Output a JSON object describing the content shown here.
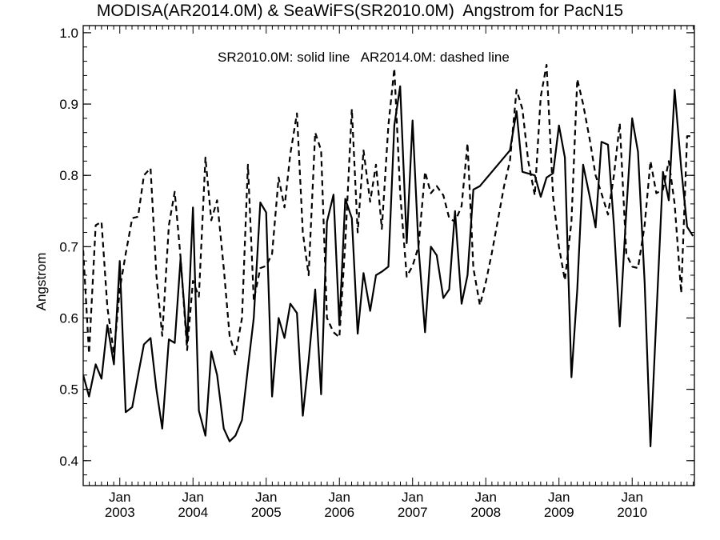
{
  "chart_data": {
    "type": "line",
    "title": "MODISA(AR2014.0M) & SeaWiFS(SR2010.0M)  Angstrom for PacN15",
    "legend_text": "SR2010.0M: solid line   AR2014.0M: dashed line",
    "ylabel": "Angstrom",
    "xlabel": "",
    "ylim": [
      0.365,
      1.01
    ],
    "xlim": [
      2002.5,
      2010.85
    ],
    "grid": false,
    "y_ticks": [
      "0.4",
      "0.5",
      "0.6",
      "0.7",
      "0.8",
      "0.9",
      "1.0"
    ],
    "x_ticks": [
      {
        "month": "Jan",
        "year": "2003",
        "x": 2003.0
      },
      {
        "month": "Jan",
        "year": "2004",
        "x": 2004.0
      },
      {
        "month": "Jan",
        "year": "2005",
        "x": 2005.0
      },
      {
        "month": "Jan",
        "year": "2006",
        "x": 2006.0
      },
      {
        "month": "Jan",
        "year": "2007",
        "x": 2007.0
      },
      {
        "month": "Jan",
        "year": "2008",
        "x": 2008.0
      },
      {
        "month": "Jan",
        "year": "2009",
        "x": 2009.0
      },
      {
        "month": "Jan",
        "year": "2010",
        "x": 2010.0
      }
    ],
    "series": [
      {
        "name": "SR2010.0M",
        "style": "solid",
        "color": "#000000",
        "points": [
          [
            2002.5,
            0.52
          ],
          [
            2002.58,
            0.49
          ],
          [
            2002.67,
            0.535
          ],
          [
            2002.75,
            0.515
          ],
          [
            2002.83,
            0.59
          ],
          [
            2002.92,
            0.535
          ],
          [
            2003.0,
            0.68
          ],
          [
            2003.08,
            0.468
          ],
          [
            2003.17,
            0.475
          ],
          [
            2003.25,
            0.52
          ],
          [
            2003.33,
            0.563
          ],
          [
            2003.42,
            0.572
          ],
          [
            2003.5,
            0.5
          ],
          [
            2003.58,
            0.445
          ],
          [
            2003.67,
            0.57
          ],
          [
            2003.75,
            0.565
          ],
          [
            2003.83,
            0.683
          ],
          [
            2003.92,
            0.565
          ],
          [
            2004.0,
            0.755
          ],
          [
            2004.08,
            0.47
          ],
          [
            2004.17,
            0.435
          ],
          [
            2004.25,
            0.553
          ],
          [
            2004.33,
            0.52
          ],
          [
            2004.42,
            0.445
          ],
          [
            2004.5,
            0.427
          ],
          [
            2004.58,
            0.435
          ],
          [
            2004.67,
            0.457
          ],
          [
            2004.75,
            0.53
          ],
          [
            2004.83,
            0.6
          ],
          [
            2004.92,
            0.762
          ],
          [
            2005.0,
            0.748
          ],
          [
            2005.08,
            0.49
          ],
          [
            2005.17,
            0.6
          ],
          [
            2005.25,
            0.572
          ],
          [
            2005.33,
            0.62
          ],
          [
            2005.42,
            0.607
          ],
          [
            2005.5,
            0.463
          ],
          [
            2005.58,
            0.54
          ],
          [
            2005.67,
            0.64
          ],
          [
            2005.75,
            0.493
          ],
          [
            2005.83,
            0.735
          ],
          [
            2005.92,
            0.773
          ],
          [
            2006.0,
            0.59
          ],
          [
            2006.08,
            0.767
          ],
          [
            2006.17,
            0.74
          ],
          [
            2006.25,
            0.578
          ],
          [
            2006.33,
            0.663
          ],
          [
            2006.42,
            0.61
          ],
          [
            2006.5,
            0.66
          ],
          [
            2006.58,
            0.665
          ],
          [
            2006.67,
            0.672
          ],
          [
            2006.75,
            0.87
          ],
          [
            2006.83,
            0.925
          ],
          [
            2006.92,
            0.705
          ],
          [
            2007.0,
            0.877
          ],
          [
            2007.08,
            0.7
          ],
          [
            2007.17,
            0.58
          ],
          [
            2007.25,
            0.7
          ],
          [
            2007.33,
            0.688
          ],
          [
            2007.42,
            0.628
          ],
          [
            2007.5,
            0.64
          ],
          [
            2007.58,
            0.75
          ],
          [
            2007.67,
            0.62
          ],
          [
            2007.75,
            0.66
          ],
          [
            2007.83,
            0.78
          ],
          [
            2007.92,
            0.785
          ],
          [
            2008.33,
            0.835
          ],
          [
            2008.42,
            0.89
          ],
          [
            2008.5,
            0.805
          ],
          [
            2008.67,
            0.8
          ],
          [
            2008.75,
            0.77
          ],
          [
            2008.83,
            0.797
          ],
          [
            2008.92,
            0.803
          ],
          [
            2009.0,
            0.87
          ],
          [
            2009.08,
            0.825
          ],
          [
            2009.17,
            0.517
          ],
          [
            2009.25,
            0.64
          ],
          [
            2009.33,
            0.815
          ],
          [
            2009.42,
            0.77
          ],
          [
            2009.5,
            0.727
          ],
          [
            2009.58,
            0.847
          ],
          [
            2009.67,
            0.843
          ],
          [
            2009.75,
            0.73
          ],
          [
            2009.83,
            0.588
          ],
          [
            2009.92,
            0.75
          ],
          [
            2010.0,
            0.88
          ],
          [
            2010.08,
            0.833
          ],
          [
            2010.17,
            0.65
          ],
          [
            2010.25,
            0.42
          ],
          [
            2010.33,
            0.6
          ],
          [
            2010.42,
            0.805
          ],
          [
            2010.5,
            0.765
          ],
          [
            2010.58,
            0.92
          ],
          [
            2010.67,
            0.81
          ],
          [
            2010.75,
            0.728
          ],
          [
            2010.83,
            0.715
          ]
        ]
      },
      {
        "name": "AR2014.0M",
        "style": "dashed",
        "color": "#000000",
        "points": [
          [
            2002.5,
            0.695
          ],
          [
            2002.58,
            0.55
          ],
          [
            2002.67,
            0.73
          ],
          [
            2002.75,
            0.735
          ],
          [
            2002.83,
            0.615
          ],
          [
            2002.92,
            0.55
          ],
          [
            2003.0,
            0.64
          ],
          [
            2003.08,
            0.69
          ],
          [
            2003.17,
            0.74
          ],
          [
            2003.25,
            0.742
          ],
          [
            2003.33,
            0.8
          ],
          [
            2003.42,
            0.81
          ],
          [
            2003.5,
            0.66
          ],
          [
            2003.58,
            0.575
          ],
          [
            2003.67,
            0.73
          ],
          [
            2003.75,
            0.777
          ],
          [
            2003.83,
            0.685
          ],
          [
            2003.92,
            0.555
          ],
          [
            2004.0,
            0.652
          ],
          [
            2004.08,
            0.63
          ],
          [
            2004.17,
            0.825
          ],
          [
            2004.25,
            0.737
          ],
          [
            2004.33,
            0.765
          ],
          [
            2004.42,
            0.67
          ],
          [
            2004.5,
            0.575
          ],
          [
            2004.58,
            0.548
          ],
          [
            2004.67,
            0.6
          ],
          [
            2004.75,
            0.815
          ],
          [
            2004.83,
            0.625
          ],
          [
            2004.92,
            0.67
          ],
          [
            2005.0,
            0.673
          ],
          [
            2005.08,
            0.69
          ],
          [
            2005.17,
            0.797
          ],
          [
            2005.25,
            0.755
          ],
          [
            2005.33,
            0.83
          ],
          [
            2005.42,
            0.887
          ],
          [
            2005.5,
            0.72
          ],
          [
            2005.58,
            0.66
          ],
          [
            2005.67,
            0.86
          ],
          [
            2005.75,
            0.835
          ],
          [
            2005.83,
            0.6
          ],
          [
            2005.92,
            0.58
          ],
          [
            2006.0,
            0.573
          ],
          [
            2006.08,
            0.705
          ],
          [
            2006.17,
            0.893
          ],
          [
            2006.25,
            0.72
          ],
          [
            2006.33,
            0.835
          ],
          [
            2006.42,
            0.763
          ],
          [
            2006.5,
            0.815
          ],
          [
            2006.58,
            0.725
          ],
          [
            2006.67,
            0.87
          ],
          [
            2006.75,
            0.95
          ],
          [
            2006.83,
            0.775
          ],
          [
            2006.92,
            0.658
          ],
          [
            2007.0,
            0.673
          ],
          [
            2007.08,
            0.7
          ],
          [
            2007.17,
            0.805
          ],
          [
            2007.25,
            0.775
          ],
          [
            2007.33,
            0.785
          ],
          [
            2007.42,
            0.772
          ],
          [
            2007.5,
            0.74
          ],
          [
            2007.58,
            0.735
          ],
          [
            2007.67,
            0.757
          ],
          [
            2007.75,
            0.845
          ],
          [
            2007.83,
            0.67
          ],
          [
            2007.92,
            0.618
          ],
          [
            2008.0,
            0.65
          ],
          [
            2008.08,
            0.69
          ],
          [
            2008.17,
            0.74
          ],
          [
            2008.25,
            0.785
          ],
          [
            2008.33,
            0.82
          ],
          [
            2008.42,
            0.92
          ],
          [
            2008.5,
            0.893
          ],
          [
            2008.58,
            0.82
          ],
          [
            2008.67,
            0.772
          ],
          [
            2008.75,
            0.91
          ],
          [
            2008.83,
            0.955
          ],
          [
            2008.92,
            0.77
          ],
          [
            2009.0,
            0.7
          ],
          [
            2009.08,
            0.653
          ],
          [
            2009.17,
            0.735
          ],
          [
            2009.25,
            0.935
          ],
          [
            2009.33,
            0.9
          ],
          [
            2009.42,
            0.85
          ],
          [
            2009.5,
            0.8
          ],
          [
            2009.58,
            0.775
          ],
          [
            2009.67,
            0.745
          ],
          [
            2009.75,
            0.8
          ],
          [
            2009.83,
            0.873
          ],
          [
            2009.92,
            0.69
          ],
          [
            2010.0,
            0.672
          ],
          [
            2010.08,
            0.67
          ],
          [
            2010.17,
            0.73
          ],
          [
            2010.25,
            0.82
          ],
          [
            2010.33,
            0.775
          ],
          [
            2010.42,
            0.78
          ],
          [
            2010.5,
            0.82
          ],
          [
            2010.58,
            0.76
          ],
          [
            2010.67,
            0.635
          ],
          [
            2010.75,
            0.855
          ],
          [
            2010.83,
            0.855
          ]
        ]
      }
    ]
  }
}
